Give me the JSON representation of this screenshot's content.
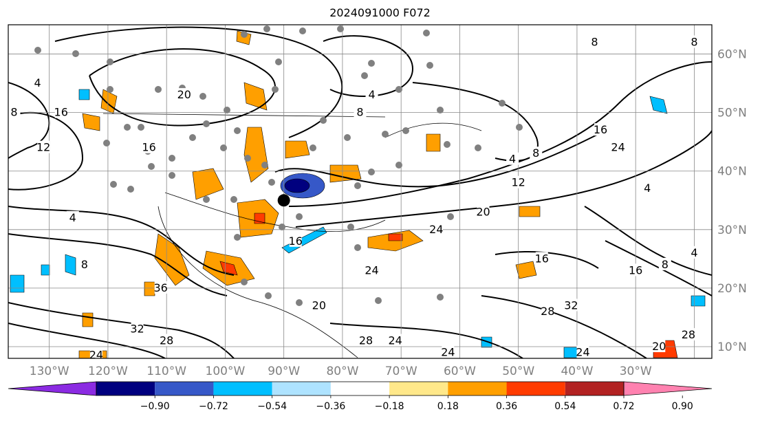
{
  "title": "2024091000 F072",
  "map": {
    "lon_labels": [
      "130°W",
      "120°W",
      "110°W",
      "100°W",
      "90°W",
      "80°W",
      "70°W",
      "60°W",
      "50°W",
      "40°W",
      "30°W"
    ],
    "lat_labels": [
      "60°N",
      "50°N",
      "40°N",
      "30°N",
      "20°N",
      "10°N"
    ],
    "lon_range": [
      -137,
      -17
    ],
    "lat_range": [
      8,
      65
    ],
    "contour_labels": [
      {
        "text": "20",
        "lon": -107,
        "lat": 53
      },
      {
        "text": "16",
        "lon": -128,
        "lat": 50
      },
      {
        "text": "12",
        "lon": -131,
        "lat": 44
      },
      {
        "text": "8",
        "lon": -136,
        "lat": 50
      },
      {
        "text": "4",
        "lon": -132,
        "lat": 55
      },
      {
        "text": "16",
        "lon": -113,
        "lat": 44
      },
      {
        "text": "4",
        "lon": -126,
        "lat": 32
      },
      {
        "text": "8",
        "lon": -124,
        "lat": 24
      },
      {
        "text": "8",
        "lon": -77,
        "lat": 50
      },
      {
        "text": "4",
        "lon": -75,
        "lat": 53
      },
      {
        "text": "4",
        "lon": -51,
        "lat": 42
      },
      {
        "text": "8",
        "lon": -47,
        "lat": 43
      },
      {
        "text": "12",
        "lon": -50,
        "lat": 38
      },
      {
        "text": "16",
        "lon": -36,
        "lat": 47
      },
      {
        "text": "24",
        "lon": -33,
        "lat": 44
      },
      {
        "text": "20",
        "lon": -56,
        "lat": 33
      },
      {
        "text": "24",
        "lon": -64,
        "lat": 30
      },
      {
        "text": "16",
        "lon": -88,
        "lat": 28
      },
      {
        "text": "16",
        "lon": -46,
        "lat": 25
      },
      {
        "text": "24",
        "lon": -75,
        "lat": 23
      },
      {
        "text": "16",
        "lon": -30,
        "lat": 23
      },
      {
        "text": "8",
        "lon": -25,
        "lat": 24
      },
      {
        "text": "4",
        "lon": -20,
        "lat": 26
      },
      {
        "text": "4",
        "lon": -28,
        "lat": 37
      },
      {
        "text": "36",
        "lon": -111,
        "lat": 20
      },
      {
        "text": "32",
        "lon": -115,
        "lat": 13
      },
      {
        "text": "28",
        "lon": -110,
        "lat": 11
      },
      {
        "text": "24",
        "lon": -122,
        "lat": 8.5
      },
      {
        "text": "32",
        "lon": -41,
        "lat": 17
      },
      {
        "text": "28",
        "lon": -45,
        "lat": 16
      },
      {
        "text": "28",
        "lon": -76,
        "lat": 11
      },
      {
        "text": "24",
        "lon": -71,
        "lat": 11
      },
      {
        "text": "20",
        "lon": -84,
        "lat": 17
      },
      {
        "text": "24",
        "lon": -62,
        "lat": 9
      },
      {
        "text": "24",
        "lon": -39,
        "lat": 9
      },
      {
        "text": "20",
        "lon": -26,
        "lat": 10
      },
      {
        "text": "28",
        "lon": -21,
        "lat": 12
      },
      {
        "text": "8",
        "lon": -20,
        "lat": 62
      },
      {
        "text": "8",
        "lon": -37,
        "lat": 62
      }
    ],
    "center_marker": {
      "lon": -90,
      "lat": 35
    }
  },
  "colorbar": {
    "ticks": [
      "−0.90",
      "−0.72",
      "−0.54",
      "−0.36",
      "−0.18",
      "0.18",
      "0.36",
      "0.54",
      "0.72",
      "0.90"
    ],
    "colors": [
      "#8b2be2",
      "#00007f",
      "#3658c8",
      "#00bfff",
      "#aee3ff",
      "#ffffff",
      "#ffe88a",
      "#ff9f00",
      "#ff3b00",
      "#b22222",
      "#ff82b0"
    ]
  }
}
